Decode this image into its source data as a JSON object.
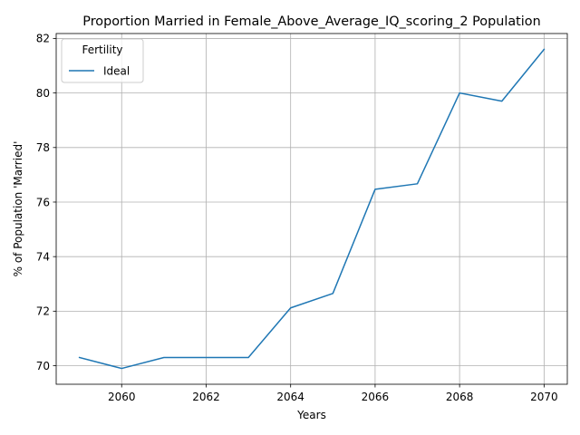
{
  "chart_data": {
    "type": "line",
    "title": "Proportion Married in Female_Above_Average_IQ_scoring_2 Population",
    "xlabel": "Years",
    "ylabel": "% of Population 'Married'",
    "x": [
      2059,
      2060,
      2061,
      2062,
      2063,
      2064,
      2065,
      2066,
      2067,
      2068,
      2069,
      2070
    ],
    "series": [
      {
        "name": "Ideal",
        "color": "#1f77b4",
        "values": [
          70.3,
          69.9,
          70.3,
          70.3,
          70.3,
          72.12,
          72.65,
          76.47,
          76.67,
          80.0,
          79.7,
          81.6
        ]
      }
    ],
    "xlim": [
      2058.45,
      2070.55
    ],
    "ylim": [
      69.32,
      82.18
    ],
    "xticks": [
      2060,
      2062,
      2064,
      2066,
      2068,
      2070
    ],
    "yticks": [
      70,
      72,
      74,
      76,
      78,
      80,
      82
    ],
    "grid": true,
    "legend": {
      "title": "Fertility",
      "placement": "top-left"
    }
  }
}
